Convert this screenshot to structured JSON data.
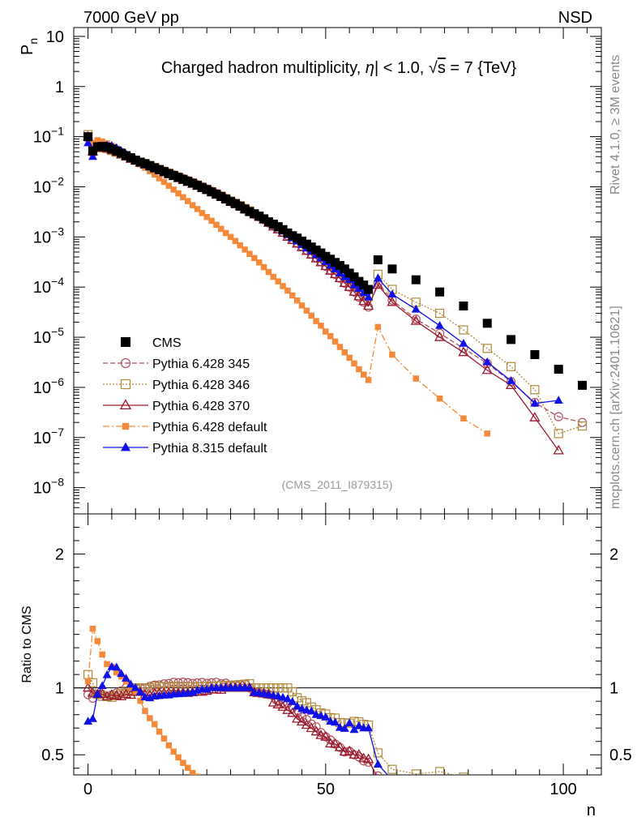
{
  "header": {
    "energy_label": "7000 GeV pp",
    "process_label": "NSD"
  },
  "side_labels": {
    "rivet": "Rivet 4.1.0, ≥ 3M events",
    "mcplots": "mcplots.cern.ch [arXiv:2401.10621]"
  },
  "chart_data": [
    {
      "type": "scatter",
      "panel": "main",
      "title": "Charged hadron multiplicity, |η| < 1.0, √s = 7 {TeV}",
      "title_parts": {
        "a": "Charged hadron multiplicity, ",
        "eta": "η",
        "b": "| < 1.0, ",
        "sqrt": "√",
        "s": "s",
        "c": " = 7 {TeV}"
      },
      "ylabel": "P",
      "ylabel_sub": "n",
      "yscale": "log",
      "ylim": [
        3e-09,
        15
      ],
      "xlim": [
        -3,
        108
      ],
      "y_tick_labels": [
        {
          "v": 10,
          "base": "10",
          "exp": ""
        },
        {
          "v": 1,
          "base": "1",
          "exp": ""
        },
        {
          "v": 0.1,
          "base": "10",
          "exp": "−1"
        },
        {
          "v": 0.01,
          "base": "10",
          "exp": "−2"
        },
        {
          "v": 0.001,
          "base": "10",
          "exp": "−3"
        },
        {
          "v": 0.0001,
          "base": "10",
          "exp": "−4"
        },
        {
          "v": 1e-05,
          "base": "10",
          "exp": "−5"
        },
        {
          "v": 1e-06,
          "base": "10",
          "exp": "−6"
        },
        {
          "v": 1e-07,
          "base": "10",
          "exp": "−7"
        },
        {
          "v": 1e-08,
          "base": "10",
          "exp": "−8"
        }
      ],
      "watermark": "(CMS_2011_I879315)",
      "series": [
        {
          "name": "CMS",
          "color": "#000000",
          "marker": "square-filled",
          "style": "none",
          "x": [
            0,
            1,
            2,
            3,
            4,
            5,
            6,
            7,
            8,
            9,
            10,
            11,
            12,
            13,
            14,
            15,
            16,
            17,
            18,
            19,
            20,
            21,
            22,
            23,
            24,
            25,
            26,
            27,
            28,
            29,
            30,
            31,
            32,
            33,
            34,
            35,
            36,
            37,
            38,
            39,
            40,
            41,
            42,
            43,
            44,
            45,
            46,
            47,
            48,
            49,
            50,
            51,
            52,
            53,
            54,
            55,
            56,
            57,
            58,
            59,
            61,
            64,
            69,
            74,
            79,
            84,
            89,
            94,
            99,
            104
          ],
          "y": [
            0.1,
            0.052,
            0.063,
            0.064,
            0.062,
            0.057,
            0.052,
            0.047,
            0.042,
            0.038,
            0.034,
            0.031,
            0.029,
            0.0265,
            0.024,
            0.022,
            0.0201,
            0.0184,
            0.0168,
            0.0154,
            0.0141,
            0.0129,
            0.0118,
            0.0107,
            0.0097,
            0.0088,
            0.0079,
            0.0071,
            0.0064,
            0.0057,
            0.0051,
            0.0046,
            0.0041,
            0.0036,
            0.0032,
            0.0029,
            0.0026,
            0.0023,
            0.002,
            0.0018,
            0.0016,
            0.0014,
            0.0012,
            0.00106,
            0.00095,
            0.00083,
            0.00072,
            0.00063,
            0.00055,
            0.00048,
            0.00041,
            0.00036,
            0.00031,
            0.00027,
            0.00023,
            0.00019,
            0.00016,
            0.00013,
            0.00011,
            9e-05,
            0.00035,
            0.00023,
            0.00014,
            8e-05,
            4.2e-05,
            1.9e-05,
            9e-06,
            4.5e-06,
            2.3e-06,
            1.1e-06
          ]
        },
        {
          "name": "Pythia 6.428 345",
          "color": "#b15060",
          "marker": "circle-open",
          "style": "dashed",
          "x": [
            0,
            1,
            2,
            3,
            4,
            5,
            6,
            7,
            8,
            9,
            10,
            11,
            12,
            13,
            14,
            15,
            16,
            17,
            18,
            19,
            20,
            21,
            22,
            23,
            24,
            25,
            26,
            27,
            28,
            29,
            30,
            31,
            32,
            33,
            34,
            35,
            36,
            37,
            38,
            39,
            40,
            41,
            42,
            43,
            44,
            45,
            46,
            47,
            48,
            49,
            50,
            51,
            52,
            53,
            54,
            55,
            56,
            57,
            58,
            59,
            61,
            64,
            69,
            74,
            79,
            84,
            89,
            94,
            99,
            104
          ],
          "y": [
            0.095,
            0.048,
            0.06,
            0.061,
            0.058,
            0.054,
            0.05,
            0.046,
            0.042,
            0.038,
            0.034,
            0.031,
            0.029,
            0.0268,
            0.0245,
            0.0225,
            0.0207,
            0.019,
            0.0175,
            0.016,
            0.0147,
            0.0134,
            0.0122,
            0.0111,
            0.0101,
            0.0091,
            0.0082,
            0.0074,
            0.0066,
            0.0059,
            0.0052,
            0.0047,
            0.0042,
            0.0037,
            0.0032,
            0.0028,
            0.0025,
            0.0022,
            0.0019,
            0.0017,
            0.00145,
            0.00125,
            0.00106,
            0.0009,
            0.00077,
            0.00065,
            0.00055,
            0.00046,
            0.00039,
            0.00032,
            0.00026,
            0.00022,
            0.00018,
            0.00015,
            0.00012,
            0.0001,
            8e-05,
            6.3e-05,
            5e-05,
            4e-05,
            0.00012,
            5.5e-05,
            2.3e-05,
            1.2e-05,
            6e-06,
            3e-06,
            1.3e-06,
            5e-07,
            2.6e-07,
            2e-07
          ]
        },
        {
          "name": "Pythia 6.428 346",
          "color": "#b08a3a",
          "marker": "square-open",
          "style": "dotted",
          "x": [
            0,
            1,
            2,
            3,
            4,
            5,
            6,
            7,
            8,
            9,
            10,
            11,
            12,
            13,
            14,
            15,
            16,
            17,
            18,
            19,
            20,
            21,
            22,
            23,
            24,
            25,
            26,
            27,
            28,
            29,
            30,
            31,
            32,
            33,
            34,
            35,
            36,
            37,
            38,
            39,
            40,
            41,
            42,
            43,
            44,
            45,
            46,
            47,
            48,
            49,
            50,
            51,
            52,
            53,
            54,
            55,
            56,
            57,
            58,
            59,
            61,
            64,
            69,
            74,
            79,
            84,
            89,
            94,
            99,
            104
          ],
          "y": [
            0.11,
            0.054,
            0.06,
            0.06,
            0.058,
            0.053,
            0.049,
            0.045,
            0.041,
            0.037,
            0.034,
            0.031,
            0.029,
            0.0265,
            0.0243,
            0.0222,
            0.0203,
            0.0186,
            0.017,
            0.0155,
            0.0142,
            0.013,
            0.0119,
            0.0108,
            0.0098,
            0.0089,
            0.008,
            0.0072,
            0.0065,
            0.0058,
            0.0052,
            0.0047,
            0.0042,
            0.0037,
            0.0033,
            0.0029,
            0.0026,
            0.0023,
            0.002,
            0.0018,
            0.0016,
            0.0014,
            0.0012,
            0.00103,
            0.00088,
            0.00075,
            0.00064,
            0.00054,
            0.00046,
            0.00039,
            0.00033,
            0.00028,
            0.00024,
            0.0002,
            0.00017,
            0.00014,
            0.00012,
            9.7e-05,
            8e-05,
            6.5e-05,
            0.00018,
            9e-05,
            5e-05,
            3e-05,
            1.4e-05,
            6e-06,
            2.6e-06,
            9e-07,
            1.2e-07,
            1.7e-07
          ]
        },
        {
          "name": "Pythia 6.428 370",
          "color": "#9b1a2e",
          "marker": "triangle-open",
          "style": "solid",
          "x": [
            0,
            1,
            2,
            3,
            4,
            5,
            6,
            7,
            8,
            9,
            10,
            11,
            12,
            13,
            14,
            15,
            16,
            17,
            18,
            19,
            20,
            21,
            22,
            23,
            24,
            25,
            26,
            27,
            28,
            29,
            30,
            31,
            32,
            33,
            34,
            35,
            36,
            37,
            38,
            39,
            40,
            41,
            42,
            43,
            44,
            45,
            46,
            47,
            48,
            49,
            50,
            51,
            52,
            53,
            54,
            55,
            56,
            57,
            58,
            59,
            61,
            64,
            69,
            74,
            79,
            84,
            89,
            94,
            99
          ],
          "y": [
            0.1,
            0.05,
            0.06,
            0.061,
            0.058,
            0.054,
            0.049,
            0.044,
            0.04,
            0.036,
            0.033,
            0.03,
            0.0275,
            0.025,
            0.023,
            0.0211,
            0.0193,
            0.0177,
            0.0162,
            0.0148,
            0.0136,
            0.0124,
            0.0114,
            0.0104,
            0.0094,
            0.0086,
            0.0078,
            0.007,
            0.0063,
            0.0057,
            0.0051,
            0.0046,
            0.0041,
            0.0036,
            0.0032,
            0.0028,
            0.0025,
            0.0022,
            0.0019,
            0.0016,
            0.0014,
            0.0012,
            0.001,
            0.00086,
            0.00073,
            0.00062,
            0.00052,
            0.00044,
            0.00037,
            0.00031,
            0.00026,
            0.00021,
            0.00018,
            0.00015,
            0.00012,
            0.0001,
            8e-05,
            6.5e-05,
            5.2e-05,
            4.2e-05,
            0.00011,
            5e-05,
            2.1e-05,
            1e-05,
            5e-06,
            2.2e-06,
            1.1e-06,
            2.5e-07,
            5.5e-08
          ]
        },
        {
          "name": "Pythia 6.428 default",
          "color": "#f5893a",
          "marker": "square-filled-small",
          "style": "dashdot",
          "x": [
            0,
            1,
            2,
            3,
            4,
            5,
            6,
            7,
            8,
            9,
            10,
            11,
            12,
            13,
            14,
            15,
            16,
            17,
            18,
            19,
            20,
            21,
            22,
            23,
            24,
            25,
            26,
            27,
            28,
            29,
            30,
            31,
            32,
            33,
            34,
            35,
            36,
            37,
            38,
            39,
            40,
            41,
            42,
            43,
            44,
            45,
            46,
            47,
            48,
            49,
            50,
            51,
            52,
            53,
            54,
            55,
            56,
            57,
            58,
            59,
            61,
            64,
            69,
            74,
            79,
            84
          ],
          "y": [
            0.105,
            0.075,
            0.085,
            0.08,
            0.073,
            0.066,
            0.058,
            0.051,
            0.044,
            0.038,
            0.033,
            0.028,
            0.024,
            0.0205,
            0.0175,
            0.0148,
            0.0125,
            0.0105,
            0.0088,
            0.0074,
            0.0062,
            0.0052,
            0.0043,
            0.0036,
            0.003,
            0.0025,
            0.0021,
            0.00175,
            0.00145,
            0.0012,
            0.001,
            0.00083,
            0.00068,
            0.00056,
            0.00046,
            0.00038,
            0.00031,
            0.00025,
            0.0002,
            0.00016,
            0.00013,
            0.000105,
            8.5e-05,
            6.8e-05,
            5.4e-05,
            4.3e-05,
            3.4e-05,
            2.7e-05,
            2.1e-05,
            1.7e-05,
            1.3e-05,
            1.05e-05,
            8.2e-06,
            6.4e-06,
            5e-06,
            3.9e-06,
            3e-06,
            2.3e-06,
            1.8e-06,
            1.4e-06,
            1.6e-05,
            4.5e-06,
            1.5e-06,
            6e-07,
            2.4e-07,
            1.2e-07
          ]
        },
        {
          "name": "Pythia 8.315 default",
          "color": "#1010e8",
          "marker": "triangle-filled",
          "style": "solid",
          "x": [
            0,
            1,
            2,
            3,
            4,
            5,
            6,
            7,
            8,
            9,
            10,
            11,
            12,
            13,
            14,
            15,
            16,
            17,
            18,
            19,
            20,
            21,
            22,
            23,
            24,
            25,
            26,
            27,
            28,
            29,
            30,
            31,
            32,
            33,
            34,
            35,
            36,
            37,
            38,
            39,
            40,
            41,
            42,
            43,
            44,
            45,
            46,
            47,
            48,
            49,
            50,
            51,
            52,
            53,
            54,
            55,
            56,
            57,
            58,
            59,
            61,
            64,
            69,
            74,
            79,
            84,
            89,
            94,
            99
          ],
          "y": [
            0.075,
            0.04,
            0.06,
            0.065,
            0.068,
            0.066,
            0.06,
            0.052,
            0.045,
            0.039,
            0.034,
            0.03,
            0.027,
            0.0245,
            0.0225,
            0.0207,
            0.019,
            0.0174,
            0.016,
            0.0147,
            0.0135,
            0.0124,
            0.0114,
            0.0105,
            0.0096,
            0.0087,
            0.0079,
            0.0071,
            0.0064,
            0.0057,
            0.0051,
            0.0046,
            0.0041,
            0.0036,
            0.0032,
            0.0028,
            0.0025,
            0.0022,
            0.0019,
            0.0017,
            0.0015,
            0.0013,
            0.0011,
            0.00095,
            0.00082,
            0.0007,
            0.0006,
            0.00052,
            0.00044,
            0.00038,
            0.00032,
            0.00027,
            0.00023,
            0.00019,
            0.00016,
            0.00014,
            0.00011,
            9.3e-05,
            7.7e-05,
            6.3e-05,
            0.00015,
            7.2e-05,
            3.6e-05,
            1.7e-05,
            7.5e-06,
            3.2e-06,
            1.35e-06,
            4.8e-07,
            5.5e-07
          ]
        }
      ]
    },
    {
      "type": "line",
      "panel": "ratio",
      "ylabel": "Ratio to CMS",
      "xlabel": "n",
      "ylim": [
        0.35,
        2.3
      ],
      "xlim": [
        -3,
        108
      ],
      "x_tick_labels": [
        {
          "v": 0,
          "label": "0"
        },
        {
          "v": 50,
          "label": "50"
        },
        {
          "v": 100,
          "label": "100"
        }
      ],
      "y_tick_labels": [
        {
          "v": 2,
          "label": "2"
        },
        {
          "v": 1,
          "label": "1"
        },
        {
          "v": 0.5,
          "label": "0.5"
        }
      ],
      "reference_line": 1
    }
  ]
}
